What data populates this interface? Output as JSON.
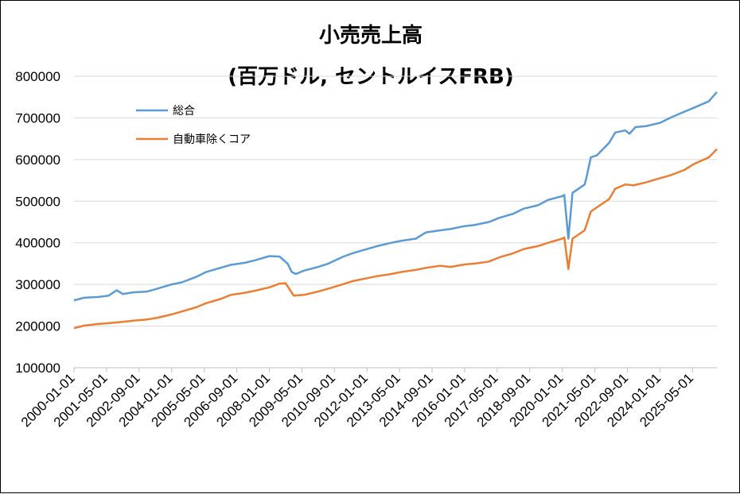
{
  "chart_data": {
    "type": "line",
    "title": "小売売上高",
    "subtitle": "(百万ドル, セントルイスFRB)",
    "ylim": [
      100000,
      800000
    ],
    "y_ticks": [
      "100000",
      "200000",
      "300000",
      "400000",
      "500000",
      "600000",
      "700000",
      "800000"
    ],
    "x_ticks": [
      "2000-01-01",
      "2001-05-01",
      "2002-09-01",
      "2004-01-01",
      "2005-05-01",
      "2006-09-01",
      "2008-01-01",
      "2009-05-01",
      "2010-09-01",
      "2012-01-01",
      "2013-05-01",
      "2014-09-01",
      "2016-01-01",
      "2017-05-01",
      "2018-09-01",
      "2020-01-01",
      "2021-05-01",
      "2022-09-01",
      "2024-01-01",
      "2025-05-01"
    ],
    "grid": "horizontal",
    "legend_position": "top-left",
    "series": [
      {
        "name": "総合",
        "color": "#5B9BD5",
        "points": [
          [
            "2000-01",
            262000
          ],
          [
            "2000-06",
            268000
          ],
          [
            "2001-01",
            270000
          ],
          [
            "2001-06",
            273000
          ],
          [
            "2001-10",
            286000
          ],
          [
            "2002-01",
            277000
          ],
          [
            "2002-06",
            281000
          ],
          [
            "2003-01",
            283000
          ],
          [
            "2003-06",
            290000
          ],
          [
            "2004-01",
            300000
          ],
          [
            "2004-06",
            305000
          ],
          [
            "2005-01",
            318000
          ],
          [
            "2005-06",
            330000
          ],
          [
            "2006-01",
            340000
          ],
          [
            "2006-06",
            347000
          ],
          [
            "2007-01",
            352000
          ],
          [
            "2007-06",
            358000
          ],
          [
            "2008-01",
            368000
          ],
          [
            "2008-06",
            367000
          ],
          [
            "2008-10",
            350000
          ],
          [
            "2008-12",
            330000
          ],
          [
            "2009-02",
            325000
          ],
          [
            "2009-06",
            333000
          ],
          [
            "2010-01",
            342000
          ],
          [
            "2010-06",
            350000
          ],
          [
            "2011-01",
            366000
          ],
          [
            "2011-06",
            375000
          ],
          [
            "2012-01",
            385000
          ],
          [
            "2012-06",
            392000
          ],
          [
            "2013-01",
            400000
          ],
          [
            "2013-06",
            405000
          ],
          [
            "2014-01",
            410000
          ],
          [
            "2014-06",
            425000
          ],
          [
            "2015-01",
            430000
          ],
          [
            "2015-06",
            433000
          ],
          [
            "2016-01",
            440000
          ],
          [
            "2016-06",
            443000
          ],
          [
            "2017-01",
            450000
          ],
          [
            "2017-06",
            460000
          ],
          [
            "2018-01",
            470000
          ],
          [
            "2018-06",
            482000
          ],
          [
            "2019-01",
            490000
          ],
          [
            "2019-06",
            503000
          ],
          [
            "2020-01",
            512000
          ],
          [
            "2020-02",
            515000
          ],
          [
            "2020-04",
            410000
          ],
          [
            "2020-06",
            520000
          ],
          [
            "2020-12",
            540000
          ],
          [
            "2021-01",
            560000
          ],
          [
            "2021-03",
            605000
          ],
          [
            "2021-06",
            610000
          ],
          [
            "2021-12",
            640000
          ],
          [
            "2022-03",
            665000
          ],
          [
            "2022-08",
            670000
          ],
          [
            "2022-10",
            662000
          ],
          [
            "2023-01",
            678000
          ],
          [
            "2023-06",
            680000
          ],
          [
            "2024-01",
            688000
          ],
          [
            "2024-06",
            700000
          ],
          [
            "2025-01",
            715000
          ],
          [
            "2025-06",
            725000
          ],
          [
            "2026-01",
            740000
          ],
          [
            "2026-05",
            762000
          ]
        ]
      },
      {
        "name": "自動車除くコア",
        "color": "#ED7D31",
        "points": [
          [
            "2000-01",
            195000
          ],
          [
            "2000-06",
            201000
          ],
          [
            "2001-01",
            205000
          ],
          [
            "2001-06",
            207000
          ],
          [
            "2002-01",
            210000
          ],
          [
            "2002-06",
            213000
          ],
          [
            "2003-01",
            216000
          ],
          [
            "2003-06",
            220000
          ],
          [
            "2004-01",
            228000
          ],
          [
            "2004-06",
            235000
          ],
          [
            "2005-01",
            245000
          ],
          [
            "2005-06",
            255000
          ],
          [
            "2006-01",
            265000
          ],
          [
            "2006-06",
            275000
          ],
          [
            "2007-01",
            280000
          ],
          [
            "2007-06",
            285000
          ],
          [
            "2008-01",
            293000
          ],
          [
            "2008-06",
            302000
          ],
          [
            "2008-09",
            303000
          ],
          [
            "2008-11",
            288000
          ],
          [
            "2009-01",
            273000
          ],
          [
            "2009-06",
            275000
          ],
          [
            "2010-01",
            283000
          ],
          [
            "2010-06",
            290000
          ],
          [
            "2011-01",
            300000
          ],
          [
            "2011-06",
            308000
          ],
          [
            "2012-01",
            315000
          ],
          [
            "2012-06",
            320000
          ],
          [
            "2013-01",
            325000
          ],
          [
            "2013-06",
            330000
          ],
          [
            "2014-01",
            335000
          ],
          [
            "2014-06",
            340000
          ],
          [
            "2015-01",
            345000
          ],
          [
            "2015-06",
            342000
          ],
          [
            "2016-01",
            348000
          ],
          [
            "2016-06",
            350000
          ],
          [
            "2017-01",
            355000
          ],
          [
            "2017-06",
            365000
          ],
          [
            "2018-01",
            375000
          ],
          [
            "2018-06",
            385000
          ],
          [
            "2019-01",
            392000
          ],
          [
            "2019-06",
            400000
          ],
          [
            "2020-01",
            410000
          ],
          [
            "2020-02",
            413000
          ],
          [
            "2020-04",
            337000
          ],
          [
            "2020-06",
            410000
          ],
          [
            "2020-12",
            430000
          ],
          [
            "2021-01",
            445000
          ],
          [
            "2021-03",
            475000
          ],
          [
            "2021-06",
            485000
          ],
          [
            "2021-12",
            505000
          ],
          [
            "2022-03",
            530000
          ],
          [
            "2022-08",
            540000
          ],
          [
            "2022-12",
            538000
          ],
          [
            "2023-06",
            545000
          ],
          [
            "2024-01",
            555000
          ],
          [
            "2024-06",
            562000
          ],
          [
            "2025-01",
            575000
          ],
          [
            "2025-06",
            590000
          ],
          [
            "2026-01",
            605000
          ],
          [
            "2026-05",
            625000
          ]
        ]
      }
    ]
  }
}
